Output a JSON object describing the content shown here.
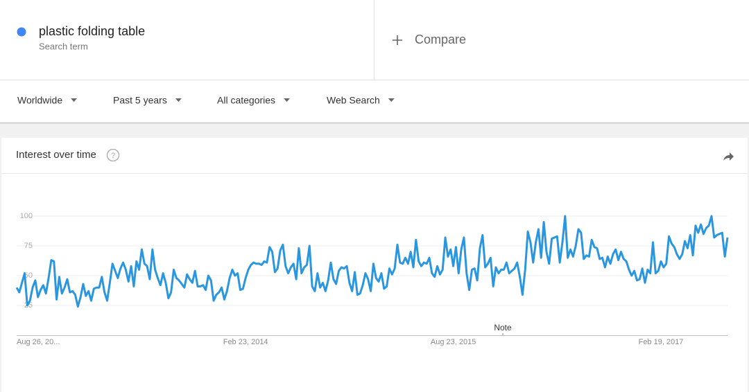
{
  "search": {
    "term": "plastic folding table",
    "subtitle": "Search term",
    "compare": "Compare"
  },
  "filters": [
    "Worldwide",
    "Past 5 years",
    "All categories",
    "Web Search"
  ],
  "chart_data": {
    "type": "line",
    "title": "Interest over time",
    "annotation": "Note",
    "categories": [
      "Aug 26, 20...",
      null,
      null,
      null,
      null,
      null,
      null,
      null,
      null,
      null,
      null,
      null,
      null,
      null,
      null,
      null,
      null,
      null,
      null,
      null,
      null,
      null,
      null,
      null,
      null,
      null,
      null,
      null,
      null,
      null,
      null,
      null,
      null,
      null,
      null,
      null,
      null,
      null,
      null,
      null,
      null,
      null,
      null,
      null,
      null,
      null,
      null,
      null,
      null,
      null,
      null,
      null,
      null,
      null,
      null,
      null,
      null,
      null,
      null,
      null,
      null,
      null,
      null,
      null,
      null,
      null,
      null,
      null,
      null,
      null,
      null,
      null,
      null,
      null,
      null,
      null,
      null,
      null,
      null,
      null,
      null,
      null,
      null,
      null,
      null,
      null,
      "Feb 23, 2014",
      null,
      null,
      null,
      null,
      null,
      null,
      null,
      null,
      null,
      null,
      null,
      null,
      null,
      null,
      null,
      null,
      null,
      null,
      null,
      null,
      null,
      null,
      null,
      null,
      null,
      null,
      null,
      null,
      null,
      null,
      null,
      null,
      null,
      null,
      null,
      null,
      null,
      null,
      null,
      null,
      null,
      null,
      null,
      null,
      null,
      null,
      null,
      null,
      null,
      null,
      null,
      null,
      null,
      null,
      null,
      null,
      null,
      null,
      null,
      null,
      null,
      null,
      null,
      null,
      null,
      null,
      null,
      null,
      null,
      null,
      null,
      null,
      null,
      null,
      null,
      null,
      null,
      "Aug 23, 2015",
      null,
      null,
      null,
      null,
      null,
      null,
      null,
      null,
      null,
      null,
      null,
      null,
      null,
      null,
      null,
      null,
      null,
      null,
      null,
      null,
      null,
      null,
      null,
      null,
      null,
      null,
      null,
      null,
      null,
      null,
      null,
      null,
      null,
      null,
      null,
      null,
      null,
      null,
      null,
      null,
      null,
      null,
      null,
      null,
      null,
      null,
      null,
      null,
      null,
      null,
      null,
      null,
      null,
      null,
      null,
      null,
      null,
      null,
      null,
      null,
      null,
      null,
      null,
      null,
      null,
      null,
      null,
      null,
      null,
      null,
      null,
      null,
      null,
      null,
      null,
      null,
      null,
      "Feb 19, 2017",
      null,
      null,
      null,
      null,
      null,
      null,
      null,
      null,
      null,
      null,
      null,
      null,
      null,
      null,
      null,
      null,
      null,
      null,
      null,
      null,
      null,
      null,
      null,
      null,
      null
    ],
    "series": [
      {
        "name": "plastic folding table",
        "color": "#2b96e0",
        "values": [
          40,
          36,
          44,
          52,
          25,
          29,
          40,
          46,
          32,
          38,
          42,
          35,
          48,
          63,
          62,
          30,
          49,
          35,
          40,
          47,
          36,
          37,
          34,
          24,
          32,
          43,
          33,
          37,
          29,
          39,
          40,
          40,
          49,
          36,
          29,
          44,
          60,
          54,
          48,
          56,
          61,
          55,
          45,
          58,
          41,
          62,
          55,
          72,
          60,
          58,
          47,
          72,
          55,
          48,
          42,
          52,
          44,
          31,
          36,
          55,
          48,
          46,
          43,
          40,
          51,
          47,
          44,
          54,
          41,
          41,
          42,
          38,
          50,
          46,
          29,
          34,
          36,
          40,
          30,
          37,
          48,
          55,
          50,
          52,
          38,
          39,
          48,
          55,
          59,
          61,
          60,
          60,
          59,
          62,
          61,
          74,
          70,
          53,
          56,
          71,
          76,
          58,
          52,
          57,
          60,
          47,
          73,
          52,
          57,
          59,
          75,
          41,
          37,
          52,
          40,
          44,
          37,
          46,
          61,
          47,
          43,
          54,
          57,
          56,
          58,
          44,
          37,
          53,
          34,
          35,
          42,
          52,
          47,
          37,
          60,
          48,
          45,
          52,
          39,
          41,
          56,
          51,
          56,
          76,
          61,
          60,
          65,
          60,
          70,
          57,
          80,
          62,
          58,
          61,
          60,
          65,
          52,
          49,
          58,
          51,
          55,
          82,
          66,
          72,
          58,
          74,
          52,
          72,
          82,
          52,
          38,
          55,
          56,
          46,
          73,
          84,
          57,
          60,
          65,
          41,
          57,
          52,
          55,
          55,
          61,
          52,
          54,
          56,
          61,
          49,
          34,
          55,
          87,
          78,
          61,
          78,
          89,
          65,
          95,
          70,
          60,
          81,
          82,
          83,
          61,
          78,
          100,
          65,
          72,
          66,
          75,
          89,
          86,
          64,
          67,
          66,
          80,
          74,
          73,
          64,
          65,
          57,
          66,
          60,
          68,
          72,
          63,
          70,
          64,
          62,
          55,
          50,
          54,
          46,
          47,
          56,
          44,
          55,
          52,
          78,
          52,
          54,
          62,
          57,
          60,
          83,
          77,
          74,
          68,
          64,
          68,
          79,
          73,
          84,
          67,
          92,
          86,
          93,
          85,
          90,
          92,
          100,
          82,
          84,
          85,
          86,
          66,
          82
        ]
      }
    ],
    "ylim": [
      0,
      100
    ],
    "yticks": [
      25,
      50,
      75,
      100
    ],
    "grid": true
  }
}
